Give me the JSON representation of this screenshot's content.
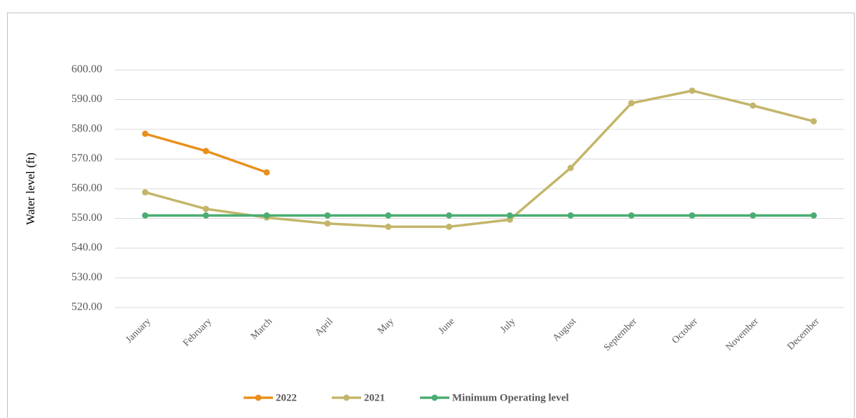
{
  "chart_data": {
    "type": "line",
    "y_label": "Water level (ft)",
    "categories": [
      "January",
      "February",
      "March",
      "April",
      "May",
      "June",
      "July",
      "August",
      "September",
      "October",
      "November",
      "December"
    ],
    "series": [
      {
        "name": "2022",
        "color": "#e8901c",
        "values": [
          578.5,
          572.7,
          565.5,
          null,
          null,
          null,
          null,
          null,
          null,
          null,
          null,
          null
        ]
      },
      {
        "name": "2021",
        "color": "#c4b56a",
        "values": [
          558.8,
          553.2,
          550.3,
          548.3,
          547.2,
          547.2,
          549.6,
          567.0,
          588.8,
          593.0,
          588.0,
          582.7
        ]
      },
      {
        "name": "Minimum Operating level",
        "color": "#4aad72",
        "values": [
          551,
          551,
          551,
          551,
          551,
          551,
          551,
          551,
          551,
          551,
          551,
          551
        ]
      }
    ],
    "ylim": [
      520,
      600
    ],
    "yticks": [
      {
        "value": 520,
        "label": "520.00"
      },
      {
        "value": 530,
        "label": "530.00"
      },
      {
        "value": 540,
        "label": "540.00"
      },
      {
        "value": 550,
        "label": "550.00"
      },
      {
        "value": 560,
        "label": "560.00"
      },
      {
        "value": 570,
        "label": "570.00"
      },
      {
        "value": 580,
        "label": "580.00"
      },
      {
        "value": 590,
        "label": "590.00"
      },
      {
        "value": 600,
        "label": "600.00"
      }
    ],
    "grid": true,
    "legend": "bottom"
  }
}
